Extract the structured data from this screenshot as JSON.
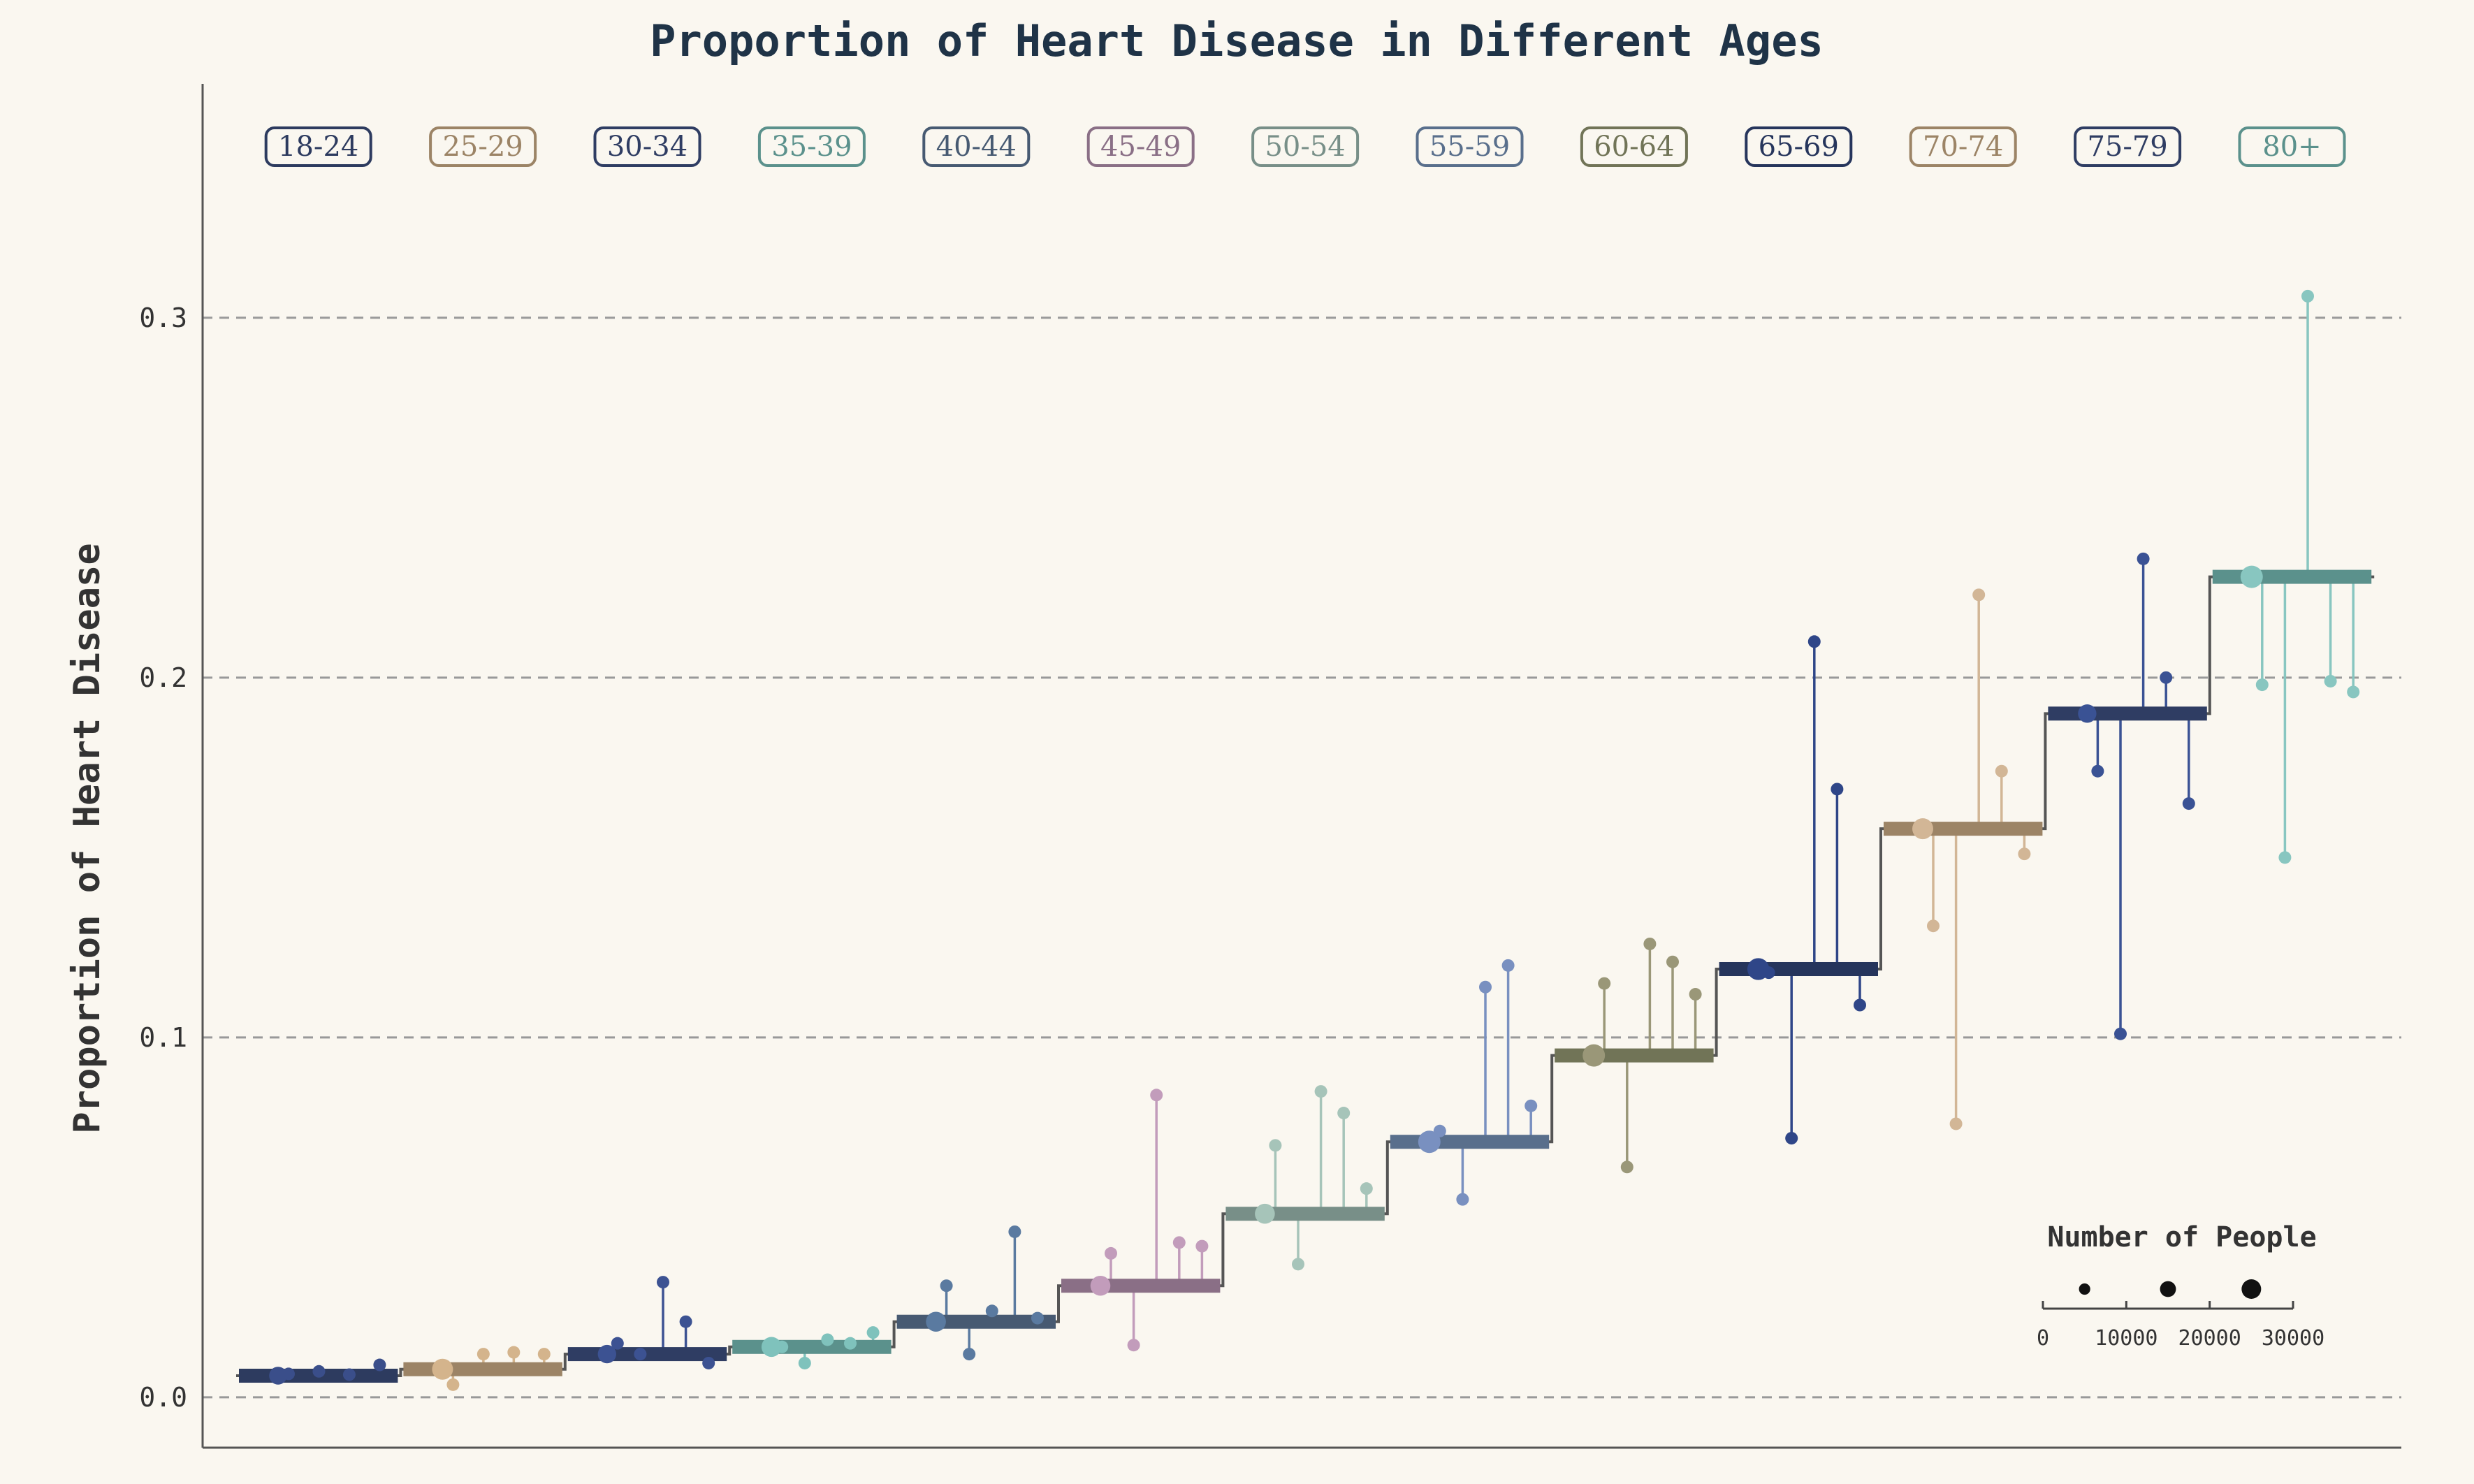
{
  "chart_data": {
    "type": "scatter",
    "title": "Proportion of Heart Disease in Different Ages",
    "ylabel": "Proportion of Heart Disease",
    "ylim": [
      -0.014,
      0.365
    ],
    "yticks": [
      0.0,
      0.1,
      0.2,
      0.3
    ],
    "grid": "horizontal dashed",
    "categories": [
      "18-24",
      "25-29",
      "30-34",
      "35-39",
      "40-44",
      "45-49",
      "50-54",
      "55-59",
      "60-64",
      "65-69",
      "70-74",
      "75-79",
      "80+"
    ],
    "colors": {
      "18-24": {
        "main": "#2d3b5f",
        "pt": "#3a4e8a"
      },
      "25-29": {
        "main": "#9c8466",
        "pt": "#d4b48c"
      },
      "30-34": {
        "main": "#2f3d63",
        "pt": "#3c5292"
      },
      "35-39": {
        "main": "#5b918c",
        "pt": "#7fc2bc"
      },
      "40-44": {
        "main": "#475a72",
        "pt": "#5a7aa0"
      },
      "45-49": {
        "main": "#8a6f86",
        "pt": "#c29cbb"
      },
      "50-54": {
        "main": "#788f88",
        "pt": "#a6c4b9"
      },
      "55-59": {
        "main": "#596f8c",
        "pt": "#7990c0"
      },
      "60-64": {
        "main": "#717457",
        "pt": "#9a9778"
      },
      "65-69": {
        "main": "#26355c",
        "pt": "#2f4688"
      },
      "70-74": {
        "main": "#9c8466",
        "pt": "#d2b696"
      },
      "75-79": {
        "main": "#2f3d63",
        "pt": "#3a5294"
      },
      "80+": {
        "main": "#5b918c",
        "pt": "#88c6c0"
      }
    },
    "series": [
      {
        "group": "18-24",
        "mean": 0.006,
        "main_size": 16000,
        "points": [
          0.0065,
          0.0072,
          0.0063,
          0.009
        ]
      },
      {
        "group": "25-29",
        "mean": 0.0078,
        "main_size": 22000,
        "points": [
          0.0035,
          0.012,
          0.0125,
          0.012
        ]
      },
      {
        "group": "30-34",
        "mean": 0.012,
        "main_size": 17000,
        "points": [
          0.015,
          0.012,
          0.032,
          0.021,
          0.0095
        ]
      },
      {
        "group": "35-39",
        "mean": 0.014,
        "main_size": 20000,
        "points": [
          0.014,
          0.0095,
          0.016,
          0.015,
          0.018
        ]
      },
      {
        "group": "40-44",
        "mean": 0.021,
        "main_size": 20000,
        "points": [
          0.031,
          0.012,
          0.024,
          0.046,
          0.022
        ]
      },
      {
        "group": "45-49",
        "mean": 0.031,
        "main_size": 20000,
        "points": [
          0.04,
          0.0145,
          0.084,
          0.043,
          0.042
        ]
      },
      {
        "group": "50-54",
        "mean": 0.051,
        "main_size": 20000,
        "points": [
          0.07,
          0.037,
          0.085,
          0.079,
          0.058
        ]
      },
      {
        "group": "55-59",
        "mean": 0.071,
        "main_size": 25000,
        "points": [
          0.074,
          0.055,
          0.114,
          0.12,
          0.081
        ]
      },
      {
        "group": "60-64",
        "mean": 0.095,
        "main_size": 25000,
        "points": [
          0.115,
          0.064,
          0.126,
          0.121,
          0.112
        ]
      },
      {
        "group": "65-69",
        "mean": 0.119,
        "main_size": 24000,
        "points": [
          0.118,
          0.072,
          0.21,
          0.169,
          0.109
        ]
      },
      {
        "group": "70-74",
        "mean": 0.158,
        "main_size": 22000,
        "points": [
          0.131,
          0.076,
          0.223,
          0.174,
          0.151
        ]
      },
      {
        "group": "75-79",
        "mean": 0.19,
        "main_size": 17000,
        "points": [
          0.174,
          0.101,
          0.233,
          0.2,
          0.165
        ]
      },
      {
        "group": "80+",
        "mean": 0.228,
        "main_size": 25000,
        "points": [
          0.198,
          0.15,
          0.306,
          0.199,
          0.196
        ]
      }
    ],
    "size_legend": {
      "title": "Number of People",
      "ticks": [
        "0",
        "10000",
        "20000",
        "30000"
      ],
      "sizes": [
        10000,
        20000,
        30000
      ]
    }
  }
}
